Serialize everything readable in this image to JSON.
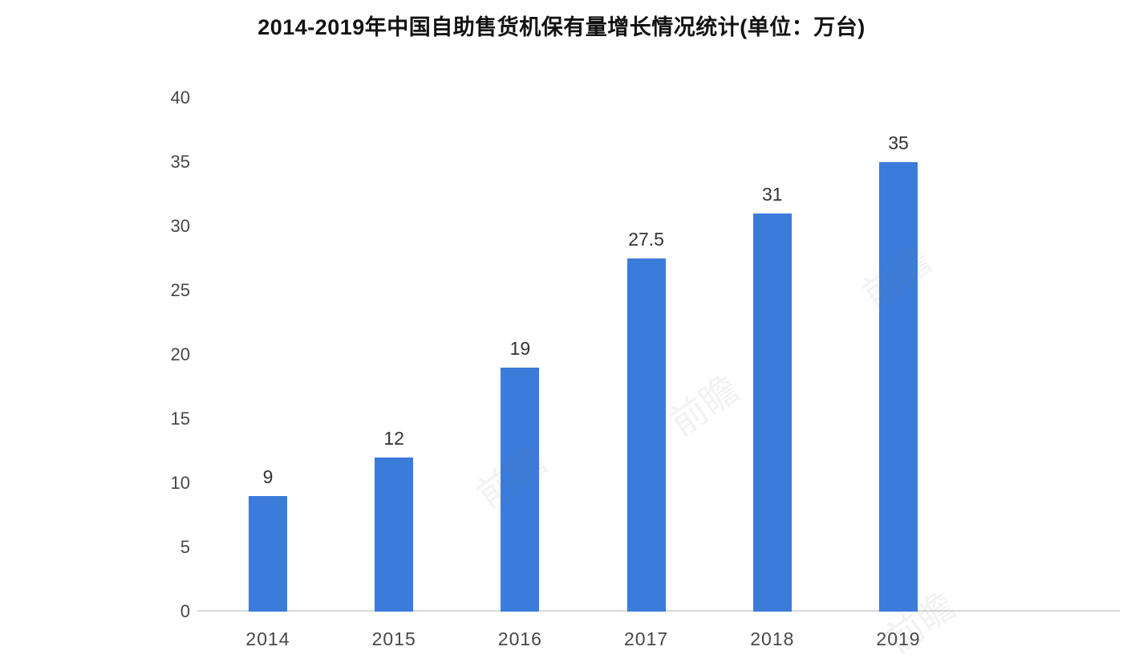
{
  "chart_data": {
    "type": "bar",
    "title": "2014-2019年中国自助售货机保有量增长情况统计(单位：万台)",
    "categories": [
      "2014",
      "2015",
      "2016",
      "2017",
      "2018",
      "2019"
    ],
    "values": [
      9,
      12,
      19,
      27.5,
      31,
      35
    ],
    "value_labels": [
      "9",
      "12",
      "19",
      "27.5",
      "31",
      "35"
    ],
    "yticks": [
      0,
      5,
      10,
      15,
      20,
      25,
      30,
      35,
      40
    ],
    "ylim": [
      0,
      40
    ],
    "xlabel": "",
    "ylabel": "",
    "grid": "off",
    "legend": "none",
    "bar_color": "#3b7cdb",
    "axis_line_color": "#d9d9d9",
    "tick_text_color": "#474747",
    "value_text_color": "#333333",
    "title_color": "#121212"
  },
  "watermark": {
    "text": "前瞻"
  }
}
